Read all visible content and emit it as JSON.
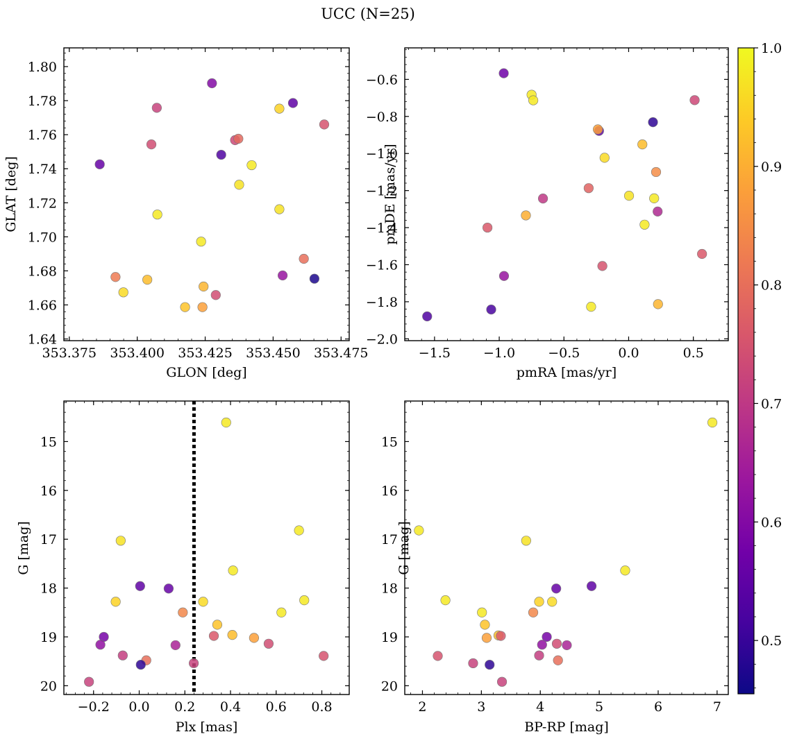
{
  "title": "UCC (N=25)",
  "colormap": {
    "name": "plasma",
    "stops": [
      "#0d0887",
      "#46039f",
      "#7201a8",
      "#9c179e",
      "#bd3786",
      "#d8576b",
      "#ed7953",
      "#fb9f3a",
      "#fdca26",
      "#f0f921"
    ],
    "vmin": 0.455,
    "vmax": 1.0,
    "ticks": [
      "0.5",
      "0.6",
      "0.7",
      "0.8",
      "0.9",
      "1.0"
    ],
    "tick_values": [
      0.5,
      0.6,
      0.7,
      0.8,
      0.9,
      1.0
    ]
  },
  "chart_data": [
    {
      "type": "scatter",
      "id": "glon-glat",
      "xlabel": "GLON [deg]",
      "ylabel": "GLAT [deg]",
      "xlim": [
        353.373,
        353.478
      ],
      "ylim": [
        1.639,
        1.811
      ],
      "xticks": [
        353.375,
        353.4,
        353.425,
        353.45,
        353.475
      ],
      "xtick_labels": [
        "353.375",
        "353.400",
        "353.425",
        "353.450",
        "353.475"
      ],
      "yticks": [
        1.64,
        1.66,
        1.68,
        1.7,
        1.72,
        1.74,
        1.76,
        1.78,
        1.8
      ],
      "ytick_labels": [
        "1.64",
        "1.66",
        "1.68",
        "1.70",
        "1.72",
        "1.74",
        "1.76",
        "1.78",
        "1.80"
      ],
      "invert_y": false,
      "points": [
        {
          "x": 353.3862,
          "y": 1.7426,
          "c": 0.56
        },
        {
          "x": 353.4072,
          "y": 1.7758,
          "c": 0.72
        },
        {
          "x": 353.4052,
          "y": 1.7543,
          "c": 0.74
        },
        {
          "x": 353.4074,
          "y": 1.7131,
          "c": 0.98
        },
        {
          "x": 353.392,
          "y": 1.6764,
          "c": 0.82
        },
        {
          "x": 353.3949,
          "y": 1.6674,
          "c": 0.96
        },
        {
          "x": 353.4037,
          "y": 1.6748,
          "c": 0.92
        },
        {
          "x": 353.4275,
          "y": 1.7902,
          "c": 0.6
        },
        {
          "x": 353.4309,
          "y": 1.7482,
          "c": 0.53
        },
        {
          "x": 353.436,
          "y": 1.7568,
          "c": 0.73
        },
        {
          "x": 353.4372,
          "y": 1.7576,
          "c": 0.79
        },
        {
          "x": 353.4375,
          "y": 1.7306,
          "c": 0.97
        },
        {
          "x": 353.4421,
          "y": 1.7421,
          "c": 0.98
        },
        {
          "x": 353.4235,
          "y": 1.6972,
          "c": 0.98
        },
        {
          "x": 353.4176,
          "y": 1.6587,
          "c": 0.93
        },
        {
          "x": 353.4244,
          "y": 1.6708,
          "c": 0.91
        },
        {
          "x": 353.424,
          "y": 1.6587,
          "c": 0.88
        },
        {
          "x": 353.4289,
          "y": 1.6658,
          "c": 0.74
        },
        {
          "x": 353.4523,
          "y": 1.7753,
          "c": 0.95
        },
        {
          "x": 353.4573,
          "y": 1.7786,
          "c": 0.55
        },
        {
          "x": 353.4688,
          "y": 1.766,
          "c": 0.75
        },
        {
          "x": 353.4523,
          "y": 1.7162,
          "c": 0.97
        },
        {
          "x": 353.4613,
          "y": 1.6871,
          "c": 0.8
        },
        {
          "x": 353.4535,
          "y": 1.6773,
          "c": 0.63
        },
        {
          "x": 353.4652,
          "y": 1.6754,
          "c": 0.47
        }
      ]
    },
    {
      "type": "scatter",
      "id": "pmra-pmde",
      "xlabel": "pmRA [mas/yr]",
      "ylabel": "pmDE [mas/yr]",
      "xlim": [
        -1.73,
        0.77
      ],
      "ylim": [
        -2.01,
        -0.43
      ],
      "xticks": [
        -1.5,
        -1.0,
        -0.5,
        0.0,
        0.5
      ],
      "xtick_labels": [
        "−1.5",
        "−1.0",
        "−0.5",
        "0.0",
        "0.5"
      ],
      "yticks": [
        -2.0,
        -1.8,
        -1.6,
        -1.4,
        -1.2,
        -1.0,
        -0.8,
        -0.6
      ],
      "ytick_labels": [
        "−2.0",
        "−1.8",
        "−1.6",
        "−1.4",
        "−1.2",
        "−1.0",
        "−0.8",
        "−0.6"
      ],
      "invert_y": false,
      "points": [
        {
          "x": -0.965,
          "y": -0.567,
          "c": 0.57
        },
        {
          "x": -0.75,
          "y": -0.683,
          "c": 0.98
        },
        {
          "x": -0.737,
          "y": -0.713,
          "c": 0.98
        },
        {
          "x": -0.229,
          "y": -0.878,
          "c": 0.55
        },
        {
          "x": -0.238,
          "y": -0.87,
          "c": 0.88
        },
        {
          "x": 0.188,
          "y": -0.831,
          "c": 0.49
        },
        {
          "x": 0.51,
          "y": -0.712,
          "c": 0.73
        },
        {
          "x": 0.106,
          "y": -0.951,
          "c": 0.92
        },
        {
          "x": -0.186,
          "y": -1.023,
          "c": 0.96
        },
        {
          "x": 0.212,
          "y": -1.1,
          "c": 0.85
        },
        {
          "x": -0.309,
          "y": -1.187,
          "c": 0.78
        },
        {
          "x": 0.003,
          "y": -1.228,
          "c": 0.97
        },
        {
          "x": 0.197,
          "y": -1.242,
          "c": 0.98
        },
        {
          "x": -0.662,
          "y": -1.243,
          "c": 0.7
        },
        {
          "x": -0.794,
          "y": -1.334,
          "c": 0.9
        },
        {
          "x": 0.224,
          "y": -1.313,
          "c": 0.67
        },
        {
          "x": -1.091,
          "y": -1.4,
          "c": 0.76
        },
        {
          "x": 0.123,
          "y": -1.384,
          "c": 0.98
        },
        {
          "x": 0.567,
          "y": -1.542,
          "c": 0.76
        },
        {
          "x": -0.203,
          "y": -1.607,
          "c": 0.75
        },
        {
          "x": -0.963,
          "y": -1.661,
          "c": 0.63
        },
        {
          "x": -1.062,
          "y": -1.842,
          "c": 0.52
        },
        {
          "x": -1.557,
          "y": -1.879,
          "c": 0.53
        },
        {
          "x": -0.29,
          "y": -1.827,
          "c": 0.98
        },
        {
          "x": 0.227,
          "y": -1.813,
          "c": 0.91
        }
      ]
    },
    {
      "type": "scatter",
      "id": "plx-g",
      "xlabel": "Plx [mas]",
      "ylabel": "G [mag]",
      "xlim": [
        -0.33,
        0.92
      ],
      "ylim": [
        14.17,
        20.18
      ],
      "xticks": [
        -0.2,
        0.0,
        0.2,
        0.4,
        0.6,
        0.8
      ],
      "xtick_labels": [
        "−0.2",
        "0.0",
        "0.2",
        "0.4",
        "0.6",
        "0.8"
      ],
      "yticks": [
        15,
        16,
        17,
        18,
        19,
        20
      ],
      "ytick_labels": [
        "15",
        "16",
        "17",
        "18",
        "19",
        "20"
      ],
      "invert_y": true,
      "vline": 0.24,
      "points": [
        {
          "x": 0.381,
          "y": 14.61,
          "c": 0.98
        },
        {
          "x": -0.081,
          "y": 17.03,
          "c": 0.97
        },
        {
          "x": 0.7,
          "y": 16.82,
          "c": 0.98
        },
        {
          "x": 0.411,
          "y": 17.64,
          "c": 0.98
        },
        {
          "x": 0.004,
          "y": 17.96,
          "c": 0.55
        },
        {
          "x": 0.129,
          "y": 18.01,
          "c": 0.56
        },
        {
          "x": -0.103,
          "y": 18.28,
          "c": 0.95
        },
        {
          "x": 0.723,
          "y": 18.25,
          "c": 0.98
        },
        {
          "x": 0.28,
          "y": 18.28,
          "c": 0.96
        },
        {
          "x": 0.191,
          "y": 18.5,
          "c": 0.84
        },
        {
          "x": 0.623,
          "y": 18.5,
          "c": 0.98
        },
        {
          "x": 0.342,
          "y": 18.75,
          "c": 0.93
        },
        {
          "x": -0.155,
          "y": 19.0,
          "c": 0.58
        },
        {
          "x": 0.327,
          "y": 18.98,
          "c": 0.76
        },
        {
          "x": 0.408,
          "y": 18.96,
          "c": 0.92
        },
        {
          "x": 0.503,
          "y": 19.02,
          "c": 0.88
        },
        {
          "x": -0.17,
          "y": 19.16,
          "c": 0.62
        },
        {
          "x": 0.159,
          "y": 19.17,
          "c": 0.66
        },
        {
          "x": 0.567,
          "y": 19.14,
          "c": 0.74
        },
        {
          "x": -0.072,
          "y": 19.38,
          "c": 0.71
        },
        {
          "x": 0.031,
          "y": 19.48,
          "c": 0.8
        },
        {
          "x": 0.808,
          "y": 19.39,
          "c": 0.75
        },
        {
          "x": 0.007,
          "y": 19.57,
          "c": 0.49
        },
        {
          "x": 0.239,
          "y": 19.54,
          "c": 0.72
        },
        {
          "x": -0.22,
          "y": 19.92,
          "c": 0.72
        }
      ]
    },
    {
      "type": "scatter",
      "id": "bprp-g",
      "xlabel": "BP-RP [mag]",
      "ylabel": "G [mag]",
      "xlim": [
        1.7,
        7.19
      ],
      "ylim": [
        14.17,
        20.18
      ],
      "xticks": [
        2,
        3,
        4,
        5,
        6,
        7
      ],
      "xtick_labels": [
        "2",
        "3",
        "4",
        "5",
        "6",
        "7"
      ],
      "yticks": [
        15,
        16,
        17,
        18,
        19,
        20
      ],
      "ytick_labels": [
        "15",
        "16",
        "17",
        "18",
        "19",
        "20"
      ],
      "invert_y": true,
      "points": [
        {
          "x": 6.92,
          "y": 14.61,
          "c": 0.98
        },
        {
          "x": 1.94,
          "y": 16.82,
          "c": 0.98
        },
        {
          "x": 3.76,
          "y": 17.03,
          "c": 0.97
        },
        {
          "x": 5.44,
          "y": 17.64,
          "c": 0.98
        },
        {
          "x": 4.87,
          "y": 17.96,
          "c": 0.55
        },
        {
          "x": 4.27,
          "y": 18.01,
          "c": 0.56
        },
        {
          "x": 2.39,
          "y": 18.25,
          "c": 0.98
        },
        {
          "x": 3.98,
          "y": 18.28,
          "c": 0.95
        },
        {
          "x": 4.2,
          "y": 18.28,
          "c": 0.96
        },
        {
          "x": 3.01,
          "y": 18.5,
          "c": 0.98
        },
        {
          "x": 3.88,
          "y": 18.5,
          "c": 0.84
        },
        {
          "x": 3.06,
          "y": 18.75,
          "c": 0.93
        },
        {
          "x": 3.29,
          "y": 18.97,
          "c": 0.92
        },
        {
          "x": 3.33,
          "y": 18.98,
          "c": 0.76
        },
        {
          "x": 3.09,
          "y": 19.02,
          "c": 0.88
        },
        {
          "x": 4.11,
          "y": 19.0,
          "c": 0.58
        },
        {
          "x": 4.28,
          "y": 19.14,
          "c": 0.74
        },
        {
          "x": 4.03,
          "y": 19.16,
          "c": 0.62
        },
        {
          "x": 4.45,
          "y": 19.17,
          "c": 0.66
        },
        {
          "x": 2.26,
          "y": 19.39,
          "c": 0.75
        },
        {
          "x": 3.98,
          "y": 19.38,
          "c": 0.71
        },
        {
          "x": 4.3,
          "y": 19.48,
          "c": 0.8
        },
        {
          "x": 2.86,
          "y": 19.54,
          "c": 0.72
        },
        {
          "x": 3.14,
          "y": 19.57,
          "c": 0.49
        },
        {
          "x": 3.35,
          "y": 19.92,
          "c": 0.72
        }
      ]
    }
  ]
}
